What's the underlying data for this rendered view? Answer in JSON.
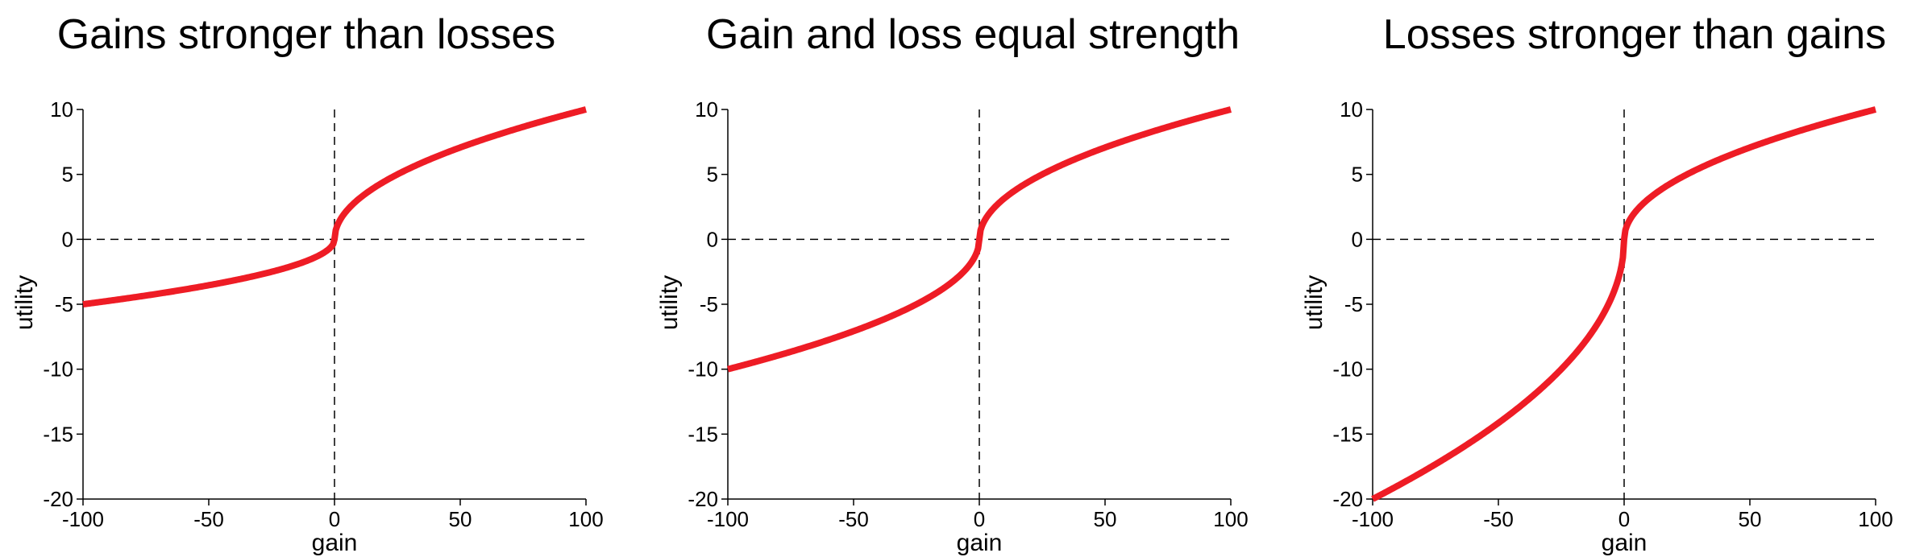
{
  "line_color": "#ee1c25",
  "chart_data": [
    {
      "type": "line",
      "title": "Gains stronger than losses",
      "xlabel": "gain",
      "ylabel": "utility",
      "xlim": [
        -100,
        100
      ],
      "ylim": [
        -20,
        10
      ],
      "xticks": [
        -100,
        -50,
        0,
        50,
        100
      ],
      "yticks": [
        10,
        5,
        0,
        -5,
        -10,
        -15,
        -20
      ],
      "gain_scale": 10,
      "loss_scale": 5,
      "x": [
        -100,
        -75,
        -50,
        -25,
        -10,
        -5,
        0,
        5,
        10,
        25,
        50,
        75,
        100
      ],
      "y": [
        -5,
        -4.33,
        -3.54,
        -2.5,
        -1.58,
        -1.12,
        0,
        2.24,
        3.16,
        5,
        7.07,
        8.66,
        10
      ]
    },
    {
      "type": "line",
      "title": "Gain and loss equal strength",
      "xlabel": "gain",
      "ylabel": "utility",
      "xlim": [
        -100,
        100
      ],
      "ylim": [
        -20,
        10
      ],
      "xticks": [
        -100,
        -50,
        0,
        50,
        100
      ],
      "yticks": [
        10,
        5,
        0,
        -5,
        -10,
        -15,
        -20
      ],
      "gain_scale": 10,
      "loss_scale": 10,
      "x": [
        -100,
        -75,
        -50,
        -25,
        -10,
        -5,
        0,
        5,
        10,
        25,
        50,
        75,
        100
      ],
      "y": [
        -10,
        -8.66,
        -7.07,
        -5,
        -3.16,
        -2.24,
        0,
        2.24,
        3.16,
        5,
        7.07,
        8.66,
        10
      ]
    },
    {
      "type": "line",
      "title": "Losses stronger than gains",
      "xlabel": "gain",
      "ylabel": "utility",
      "xlim": [
        -100,
        100
      ],
      "ylim": [
        -20,
        10
      ],
      "xticks": [
        -100,
        -50,
        0,
        50,
        100
      ],
      "yticks": [
        10,
        5,
        0,
        -5,
        -10,
        -15,
        -20
      ],
      "gain_scale": 10,
      "loss_scale": 20,
      "x": [
        -100,
        -75,
        -50,
        -25,
        -10,
        -5,
        0,
        5,
        10,
        25,
        50,
        75,
        100
      ],
      "y": [
        -20,
        -17.32,
        -14.14,
        -10,
        -6.32,
        -4.47,
        0,
        2.24,
        3.16,
        5,
        7.07,
        8.66,
        10
      ]
    }
  ]
}
